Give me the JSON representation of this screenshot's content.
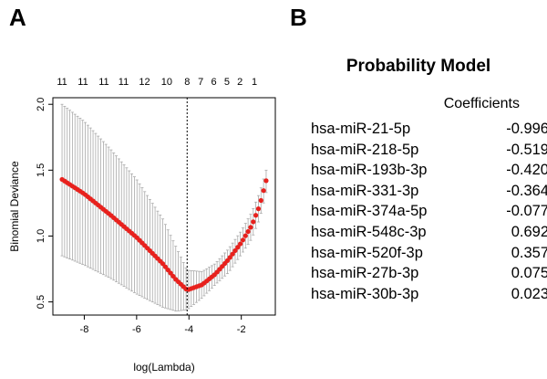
{
  "panels": {
    "a": "A",
    "b": "B"
  },
  "chart_data": {
    "type": "line",
    "xlabel": "log(Lambda)",
    "ylabel": "Binomial Deviance",
    "xlim": [
      -9.2,
      -0.7
    ],
    "ylim": [
      0.4,
      2.05
    ],
    "xticks": [
      -8,
      -6,
      -4,
      -2
    ],
    "yticks": [
      0.5,
      1.0,
      1.5,
      2.0
    ],
    "ytick_labels": [
      "0.5",
      "1.0",
      "1.5",
      "2.0"
    ],
    "top_axis": {
      "positions": [
        -8.85,
        -8.05,
        -7.25,
        -6.5,
        -5.7,
        -4.85,
        -4.07,
        -3.55,
        -3.05,
        -2.55,
        -2.05,
        -1.5
      ],
      "labels": [
        "11",
        "11",
        "11",
        "11",
        "12",
        "10",
        "8",
        "7",
        "6",
        "5",
        "2",
        "1"
      ]
    },
    "vline": -4.07,
    "series": [
      {
        "x": [
          -8.85,
          -8.0,
          -7.0,
          -6.0,
          -5.0,
          -4.5,
          -4.07,
          -3.5,
          -3.0,
          -2.5,
          -2.0,
          -1.6,
          -1.3,
          -1.05
        ],
        "y": [
          1.43,
          1.32,
          1.16,
          0.99,
          0.79,
          0.67,
          0.59,
          0.63,
          0.71,
          0.82,
          0.95,
          1.08,
          1.23,
          1.42
        ],
        "ylo": [
          0.85,
          0.78,
          0.68,
          0.56,
          0.46,
          0.43,
          0.44,
          0.53,
          0.63,
          0.72,
          0.86,
          0.98,
          1.13,
          1.33
        ],
        "yhi": [
          2.0,
          1.87,
          1.66,
          1.43,
          1.13,
          0.92,
          0.74,
          0.73,
          0.79,
          0.9,
          1.04,
          1.18,
          1.33,
          1.5
        ]
      }
    ]
  },
  "model": {
    "title": "Probability Model",
    "header": "Coefficients",
    "rows": [
      {
        "name": "hsa-miR-21-5p",
        "value": "-0.996"
      },
      {
        "name": "hsa-miR-218-5p",
        "value": "-0.519"
      },
      {
        "name": "hsa-miR-193b-3p",
        "value": "-0.420"
      },
      {
        "name": "hsa-miR-331-3p",
        "value": "-0.364"
      },
      {
        "name": "hsa-miR-374a-5p",
        "value": "-0.077"
      },
      {
        "name": "hsa-miR-548c-3p",
        "value": "0.692"
      },
      {
        "name": "hsa-miR-520f-3p",
        "value": "0.357"
      },
      {
        "name": "hsa-miR-27b-3p",
        "value": "0.075"
      },
      {
        "name": "hsa-miR-30b-3p",
        "value": "0.023"
      }
    ]
  },
  "colors": {
    "points": "#e8211d",
    "errorbars": "#a9a9a9",
    "axis": "#000000"
  }
}
